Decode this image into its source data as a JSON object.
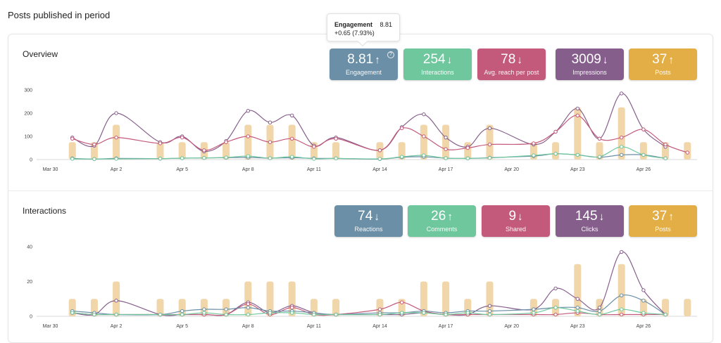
{
  "page_title": "Posts published in period",
  "colors": {
    "engagement": "#6a8fa6",
    "interactions": "#6fc79e",
    "reach": "#c35a7c",
    "impressions": "#865e8c",
    "posts": "#e3ae45",
    "bars": "#f0d6a8"
  },
  "tooltip": {
    "title": "Engagement",
    "value": "8.81",
    "delta": "+0.65 (7.93%)"
  },
  "overview": {
    "title": "Overview",
    "kpis": [
      {
        "value": "8.81",
        "arrow": "↑",
        "label": "Engagement",
        "color": "engagement",
        "help_icon": "?"
      },
      {
        "value": "254",
        "arrow": "↓",
        "label": "Interactions",
        "color": "interactions"
      },
      {
        "value": "78",
        "arrow": "↓",
        "label": "Avg. reach per post",
        "color": "reach"
      },
      {
        "value": "3009",
        "arrow": "↓",
        "label": "Impressions",
        "color": "impressions"
      },
      {
        "value": "37",
        "arrow": "↑",
        "label": "Posts",
        "color": "posts"
      }
    ]
  },
  "interactions": {
    "title": "Interactions",
    "kpis": [
      {
        "value": "74",
        "arrow": "↓",
        "label": "Reactions",
        "color": "engagement"
      },
      {
        "value": "26",
        "arrow": "↑",
        "label": "Comments",
        "color": "interactions"
      },
      {
        "value": "9",
        "arrow": "↓",
        "label": "Shared",
        "color": "reach"
      },
      {
        "value": "145",
        "arrow": "↓",
        "label": "Clicks",
        "color": "impressions"
      },
      {
        "value": "37",
        "arrow": "↑",
        "label": "Posts",
        "color": "posts"
      }
    ]
  },
  "chart_data": [
    {
      "type": "line",
      "x_ticks": [
        "Mar 30",
        "Apr 2",
        "Apr 5",
        "Apr 8",
        "Apr 11",
        "Apr 14",
        "Apr 17",
        "Apr 20",
        "Apr 23",
        "Apr 26"
      ],
      "y_ticks": [
        0,
        100,
        200,
        300
      ],
      "ylim": [
        0,
        300
      ],
      "bars": {
        "days": [
          1,
          2,
          3,
          5,
          6,
          7,
          8,
          9,
          10,
          11,
          12,
          13,
          15,
          16,
          17,
          18,
          19,
          20,
          22,
          23,
          24,
          25,
          26,
          27,
          28,
          29
        ],
        "values": [
          75,
          75,
          150,
          75,
          75,
          75,
          75,
          150,
          150,
          150,
          75,
          75,
          75,
          75,
          150,
          150,
          75,
          150,
          75,
          75,
          225,
          75,
          225,
          75,
          75,
          75
        ]
      },
      "series": [
        {
          "name": "Impressions",
          "color": "impressions",
          "days": [
            1,
            2,
            3,
            5,
            6,
            7,
            8,
            9,
            10,
            11,
            12,
            13,
            15,
            16,
            17,
            18,
            19,
            20,
            22,
            23,
            24,
            25,
            26,
            27,
            28
          ],
          "values": [
            95,
            60,
            200,
            75,
            100,
            35,
            80,
            210,
            160,
            190,
            60,
            95,
            40,
            140,
            195,
            95,
            55,
            135,
            65,
            120,
            220,
            90,
            285,
            130,
            55
          ]
        },
        {
          "name": "Avg. reach per post",
          "color": "reach",
          "days": [
            1,
            2,
            3,
            5,
            6,
            7,
            8,
            9,
            10,
            11,
            12,
            13,
            15,
            16,
            17,
            18,
            19,
            20,
            22,
            23,
            24,
            25,
            26,
            27,
            28,
            29
          ],
          "values": [
            90,
            65,
            95,
            70,
            95,
            40,
            75,
            100,
            75,
            90,
            55,
            90,
            40,
            135,
            100,
            45,
            50,
            65,
            70,
            120,
            190,
            90,
            95,
            130,
            65,
            30
          ]
        },
        {
          "name": "Engagement",
          "color": "engagement",
          "days": [
            1,
            2,
            3,
            5,
            6,
            7,
            8,
            9,
            10,
            11,
            12,
            13,
            15,
            16,
            17,
            18,
            19,
            20,
            22,
            23,
            24,
            25,
            26,
            27,
            28
          ],
          "values": [
            5,
            2,
            5,
            4,
            6,
            7,
            8,
            9,
            6,
            8,
            5,
            5,
            2,
            10,
            12,
            6,
            5,
            8,
            15,
            25,
            20,
            10,
            20,
            20,
            5
          ]
        },
        {
          "name": "Interactions",
          "color": "interactions",
          "days": [
            1,
            2,
            3,
            5,
            6,
            7,
            8,
            9,
            10,
            11,
            12,
            13,
            15,
            16,
            17,
            18,
            19,
            20,
            22,
            23,
            24,
            25,
            26,
            27,
            28
          ],
          "values": [
            3,
            2,
            3,
            4,
            6,
            7,
            9,
            15,
            6,
            12,
            3,
            5,
            3,
            12,
            18,
            6,
            5,
            7,
            18,
            25,
            20,
            12,
            55,
            20,
            5
          ]
        }
      ]
    },
    {
      "type": "line",
      "x_ticks": [
        "Mar 30",
        "Apr 2",
        "Apr 5",
        "Apr 8",
        "Apr 11",
        "Apr 14",
        "Apr 17",
        "Apr 20",
        "Apr 23",
        "Apr 26"
      ],
      "y_ticks": [
        0,
        20,
        40
      ],
      "ylim": [
        0,
        40
      ],
      "bars": {
        "days": [
          1,
          2,
          3,
          5,
          6,
          7,
          8,
          9,
          10,
          11,
          12,
          13,
          15,
          16,
          17,
          18,
          19,
          20,
          22,
          23,
          24,
          25,
          26,
          27,
          28,
          29
        ],
        "values": [
          10,
          10,
          20,
          10,
          10,
          10,
          10,
          20,
          20,
          20,
          10,
          10,
          10,
          10,
          20,
          20,
          10,
          20,
          10,
          10,
          30,
          10,
          30,
          10,
          10,
          10
        ]
      },
      "series": [
        {
          "name": "Clicks",
          "color": "impressions",
          "days": [
            1,
            2,
            3,
            5,
            6,
            7,
            8,
            9,
            10,
            11,
            12,
            13,
            15,
            16,
            17,
            18,
            19,
            20,
            22,
            23,
            24,
            25,
            26,
            27,
            28
          ],
          "values": [
            2,
            1,
            9,
            1,
            1,
            1,
            1,
            8,
            2,
            6,
            2,
            1,
            1,
            1,
            2,
            1,
            1,
            6,
            4,
            16,
            10,
            5,
            37,
            15,
            1
          ]
        },
        {
          "name": "Shared",
          "color": "reach",
          "days": [
            1,
            2,
            3,
            5,
            6,
            7,
            8,
            9,
            10,
            11,
            12,
            13,
            15,
            16,
            17,
            18,
            19,
            20,
            22,
            23,
            24,
            25,
            26,
            27,
            28
          ],
          "values": [
            2,
            1,
            1,
            1,
            1,
            1,
            1,
            7,
            1,
            5,
            1,
            1,
            4,
            8,
            3,
            1,
            1,
            1,
            1,
            1,
            2,
            1,
            1,
            1,
            1
          ]
        },
        {
          "name": "Reactions",
          "color": "engagement",
          "days": [
            1,
            2,
            3,
            5,
            6,
            7,
            8,
            9,
            10,
            11,
            12,
            13,
            15,
            16,
            17,
            18,
            19,
            20,
            22,
            23,
            24,
            25,
            26,
            27,
            28
          ],
          "values": [
            3,
            2,
            1,
            1,
            3,
            4,
            4,
            5,
            3,
            3,
            2,
            1,
            2,
            2,
            3,
            2,
            3,
            3,
            4,
            5,
            5,
            3,
            12,
            9,
            1
          ]
        },
        {
          "name": "Comments",
          "color": "interactions",
          "days": [
            1,
            2,
            3,
            5,
            6,
            7,
            8,
            9,
            10,
            11,
            12,
            13,
            15,
            16,
            17,
            18,
            19,
            20,
            22,
            23,
            24,
            25,
            26,
            27,
            28
          ],
          "values": [
            2,
            1,
            1,
            1,
            1,
            2,
            1,
            1,
            2,
            2,
            1,
            1,
            1,
            2,
            2,
            1,
            2,
            1,
            2,
            5,
            3,
            1,
            4,
            2,
            1
          ]
        }
      ]
    }
  ]
}
